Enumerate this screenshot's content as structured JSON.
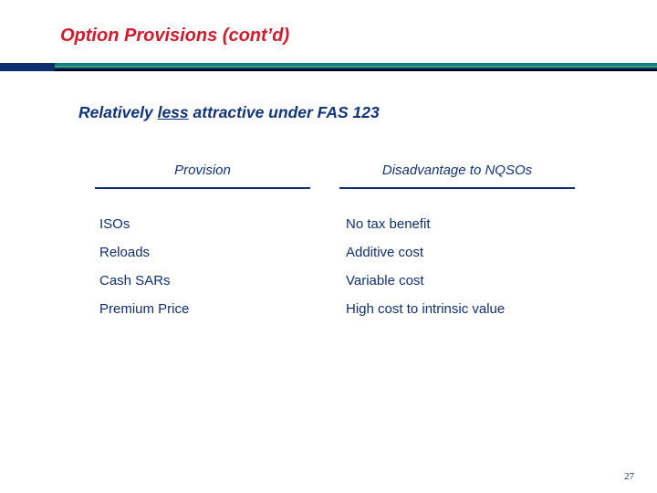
{
  "slide": {
    "title": "Option Provisions (cont’d)",
    "subheading_parts": [
      "Relatively ",
      "less",
      " attractive under FAS 123"
    ]
  },
  "table": {
    "headers": [
      "Provision",
      "Disadvantage to NQSOs"
    ],
    "rows": [
      [
        "ISOs",
        "No tax benefit"
      ],
      [
        "Reloads",
        "Additive cost"
      ],
      [
        "Cash SARs",
        "Variable cost"
      ],
      [
        "Premium Price",
        "High cost to intrinsic value"
      ]
    ]
  },
  "page_number": "27",
  "colors": {
    "title": "#d01c2c",
    "text": "#12347a",
    "rule_teal": "#0f7f86",
    "rule_green": "#3aa57d",
    "rule_navy": "#0f2f6e"
  }
}
